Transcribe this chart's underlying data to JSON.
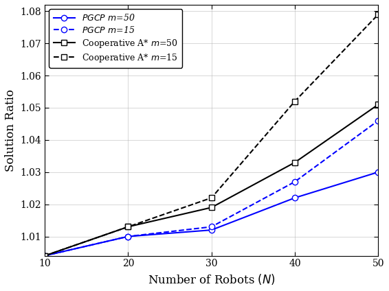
{
  "x": [
    10,
    20,
    30,
    40,
    50
  ],
  "pgcp_m50": [
    1.004,
    1.01,
    1.012,
    1.022,
    1.03
  ],
  "pgcp_m15": [
    1.004,
    1.01,
    1.013,
    1.027,
    1.046
  ],
  "coop_m50": [
    1.004,
    1.013,
    1.019,
    1.033,
    1.051
  ],
  "coop_m15": [
    1.004,
    1.013,
    1.022,
    1.052,
    1.079
  ],
  "xlabel": "Number of Robots $(N)$",
  "ylabel": "Solution Ratio",
  "xlim": [
    10,
    50
  ],
  "ylim": [
    1.004,
    1.082
  ],
  "yticks": [
    1.01,
    1.02,
    1.03,
    1.04,
    1.05,
    1.06,
    1.07,
    1.08
  ],
  "xticks": [
    10,
    20,
    30,
    40,
    50
  ],
  "legend_labels": [
    "PGCP  m=50",
    "PGCP  m=15",
    "Cooperative A*  m=50",
    "Cooperative A*  m=15"
  ],
  "color_blue": "#0000FF",
  "color_black": "#000000",
  "grid_color": "#b0b0b0"
}
